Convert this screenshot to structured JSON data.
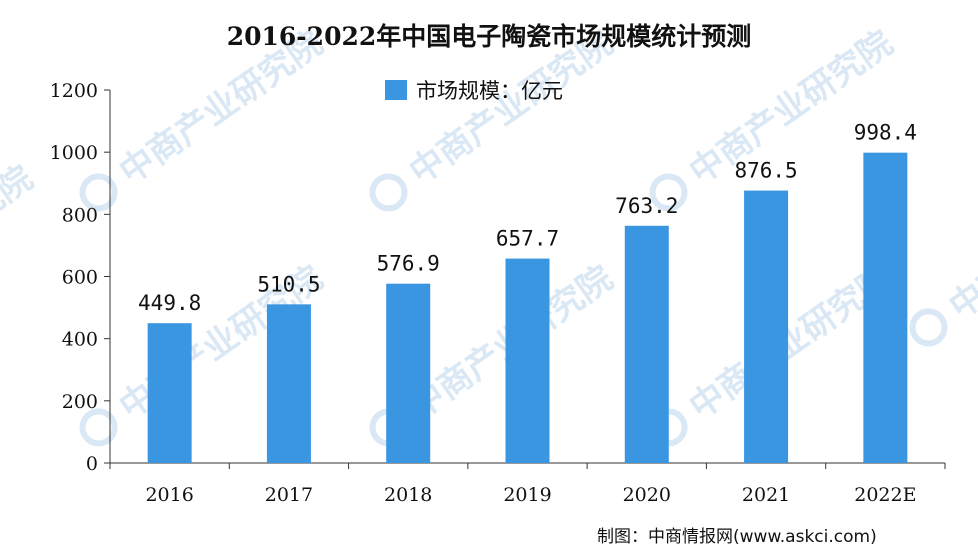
{
  "title": "2016-2022年中国电子陶瓷市场规模统计预测",
  "watermark": "中商产业研究院",
  "source": "制图：中商情报网(www.askci.com)",
  "colors": {
    "bar": "#3b96e2",
    "axis": "#333333",
    "watermark": "#d9e8f4"
  },
  "chart_data": {
    "type": "bar",
    "title": "2016-2022年中国电子陶瓷市场规模统计预测",
    "xlabel": "",
    "ylabel": "",
    "categories": [
      "2016",
      "2017",
      "2018",
      "2019",
      "2020",
      "2021",
      "2022E"
    ],
    "series": [
      {
        "name": "市场规模：亿元",
        "values": [
          449.8,
          510.5,
          576.9,
          657.7,
          763.2,
          876.5,
          998.4
        ]
      }
    ],
    "data_labels": [
      "449.8",
      "510.5",
      "576.9",
      "657.7",
      "763.2",
      "876.5",
      "998.4"
    ],
    "ylim": [
      0,
      1200
    ],
    "yticks": [
      "0",
      "200",
      "400",
      "600",
      "800",
      "1000",
      "1200"
    ],
    "grid": false,
    "legend_position": "top-center"
  }
}
